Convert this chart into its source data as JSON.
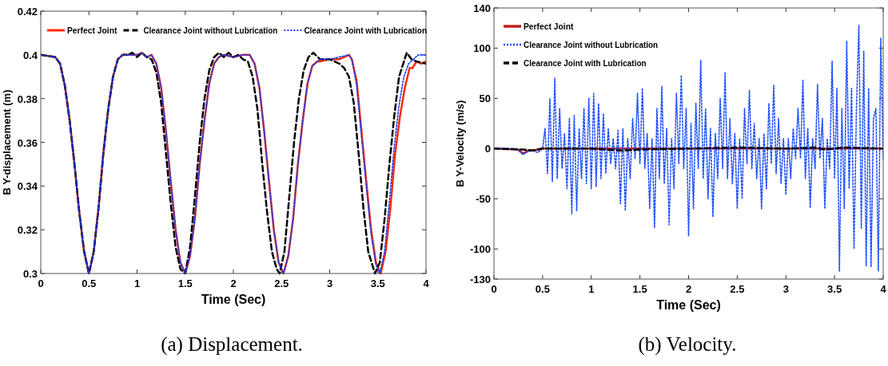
{
  "chart_data": [
    {
      "type": "line",
      "title": "(a) Displacement.",
      "xlabel": "Time (Sec)",
      "ylabel": "B Y-displacement (m)",
      "xlim": [
        0,
        4
      ],
      "xticks": [
        0,
        0.5,
        1,
        1.5,
        2,
        2.5,
        3,
        3.5,
        4
      ],
      "ylim": [
        0.3,
        0.42
      ],
      "yticks": [
        0.3,
        0.32,
        0.34,
        0.36,
        0.38,
        0.4,
        0.42
      ],
      "grid": false,
      "legend": "top",
      "marker": "none",
      "series": [
        {
          "name": "Perfect Joint",
          "color": "#ff2a00",
          "line_style": "solid",
          "x": [
            0,
            0.15,
            0.2,
            0.25,
            0.3,
            0.35,
            0.4,
            0.45,
            0.5,
            0.55,
            0.6,
            0.65,
            0.7,
            0.75,
            0.8,
            0.85,
            0.9,
            1.0,
            1.05,
            1.1,
            1.15,
            1.2,
            1.25,
            1.3,
            1.35,
            1.4,
            1.45,
            1.5,
            1.55,
            1.6,
            1.65,
            1.7,
            1.75,
            1.8,
            1.85,
            1.9,
            2.0,
            2.1,
            2.17,
            2.22,
            2.27,
            2.32,
            2.37,
            2.42,
            2.47,
            2.52,
            2.57,
            2.62,
            2.67,
            2.72,
            2.77,
            2.82,
            2.87,
            2.9,
            3.0,
            3.1,
            3.2,
            3.23,
            3.28,
            3.33,
            3.38,
            3.43,
            3.48,
            3.53,
            3.58,
            3.63,
            3.68,
            3.73,
            3.78,
            3.83,
            3.86,
            3.9,
            3.95,
            4.0
          ],
          "values": [
            0.4,
            0.399,
            0.396,
            0.386,
            0.37,
            0.35,
            0.328,
            0.31,
            0.3,
            0.31,
            0.33,
            0.355,
            0.375,
            0.39,
            0.398,
            0.4,
            0.4,
            0.4,
            0.401,
            0.399,
            0.4,
            0.396,
            0.385,
            0.365,
            0.342,
            0.32,
            0.305,
            0.3,
            0.308,
            0.325,
            0.35,
            0.37,
            0.387,
            0.396,
            0.399,
            0.4,
            0.399,
            0.4,
            0.4,
            0.396,
            0.385,
            0.365,
            0.342,
            0.32,
            0.305,
            0.3,
            0.308,
            0.325,
            0.35,
            0.37,
            0.387,
            0.395,
            0.397,
            0.397,
            0.398,
            0.398,
            0.4,
            0.398,
            0.388,
            0.365,
            0.342,
            0.32,
            0.305,
            0.3,
            0.31,
            0.33,
            0.355,
            0.372,
            0.385,
            0.394,
            0.394,
            0.397,
            0.396,
            0.397
          ]
        },
        {
          "name": "Clearance Joint without Lubrication",
          "color": "#000000",
          "line_style": "dashed",
          "x": [
            0,
            0.15,
            0.2,
            0.25,
            0.3,
            0.35,
            0.4,
            0.45,
            0.5,
            0.55,
            0.6,
            0.65,
            0.7,
            0.75,
            0.8,
            0.85,
            0.9,
            0.95,
            1.0,
            1.05,
            1.1,
            1.15,
            1.2,
            1.25,
            1.3,
            1.35,
            1.4,
            1.45,
            1.5,
            1.55,
            1.6,
            1.65,
            1.7,
            1.75,
            1.8,
            1.85,
            1.9,
            1.95,
            2.0,
            2.05,
            2.1,
            2.15,
            2.2,
            2.25,
            2.3,
            2.35,
            2.4,
            2.45,
            2.48,
            2.53,
            2.58,
            2.63,
            2.68,
            2.73,
            2.78,
            2.83,
            2.9,
            3.0,
            3.1,
            3.15,
            3.2,
            3.25,
            3.3,
            3.35,
            3.4,
            3.47,
            3.52,
            3.57,
            3.62,
            3.67,
            3.72,
            3.8,
            3.85,
            3.9,
            4.0
          ],
          "values": [
            0.4,
            0.399,
            0.396,
            0.386,
            0.37,
            0.35,
            0.328,
            0.31,
            0.3,
            0.31,
            0.33,
            0.355,
            0.375,
            0.39,
            0.398,
            0.4,
            0.4,
            0.401,
            0.399,
            0.401,
            0.399,
            0.398,
            0.392,
            0.378,
            0.355,
            0.332,
            0.312,
            0.302,
            0.3,
            0.312,
            0.335,
            0.36,
            0.38,
            0.393,
            0.399,
            0.401,
            0.399,
            0.401,
            0.399,
            0.4,
            0.398,
            0.397,
            0.39,
            0.375,
            0.35,
            0.328,
            0.31,
            0.302,
            0.3,
            0.31,
            0.335,
            0.36,
            0.38,
            0.393,
            0.399,
            0.401,
            0.398,
            0.398,
            0.396,
            0.394,
            0.39,
            0.378,
            0.355,
            0.33,
            0.31,
            0.3,
            0.305,
            0.325,
            0.35,
            0.372,
            0.39,
            0.401,
            0.398,
            0.397,
            0.396
          ]
        },
        {
          "name": "Clearance Joint with Lubrication",
          "color": "#1a3cff",
          "line_style": "dotted",
          "x": [
            0,
            0.15,
            0.2,
            0.25,
            0.3,
            0.35,
            0.4,
            0.45,
            0.5,
            0.55,
            0.6,
            0.65,
            0.7,
            0.75,
            0.8,
            0.85,
            0.9,
            1.0,
            1.05,
            1.1,
            1.15,
            1.2,
            1.25,
            1.3,
            1.35,
            1.4,
            1.45,
            1.5,
            1.55,
            1.6,
            1.65,
            1.7,
            1.75,
            1.8,
            1.85,
            1.9,
            2.0,
            2.1,
            2.17,
            2.22,
            2.27,
            2.32,
            2.37,
            2.42,
            2.47,
            2.52,
            2.57,
            2.62,
            2.67,
            2.72,
            2.77,
            2.82,
            2.87,
            2.9,
            3.0,
            3.1,
            3.2,
            3.23,
            3.28,
            3.33,
            3.38,
            3.43,
            3.48,
            3.52,
            3.57,
            3.62,
            3.67,
            3.72,
            3.77,
            3.82,
            3.87,
            3.92,
            4.0
          ],
          "values": [
            0.4,
            0.399,
            0.396,
            0.386,
            0.37,
            0.35,
            0.328,
            0.31,
            0.3,
            0.31,
            0.33,
            0.355,
            0.375,
            0.39,
            0.398,
            0.4,
            0.4,
            0.4,
            0.401,
            0.399,
            0.4,
            0.396,
            0.385,
            0.365,
            0.342,
            0.32,
            0.305,
            0.3,
            0.308,
            0.325,
            0.35,
            0.37,
            0.387,
            0.396,
            0.399,
            0.4,
            0.399,
            0.4,
            0.4,
            0.396,
            0.385,
            0.365,
            0.342,
            0.32,
            0.305,
            0.3,
            0.308,
            0.325,
            0.35,
            0.37,
            0.387,
            0.395,
            0.397,
            0.398,
            0.398,
            0.399,
            0.4,
            0.398,
            0.386,
            0.363,
            0.34,
            0.318,
            0.304,
            0.3,
            0.31,
            0.333,
            0.358,
            0.377,
            0.39,
            0.396,
            0.398,
            0.4,
            0.4
          ]
        }
      ]
    },
    {
      "type": "line",
      "title": "(b) Velocity.",
      "xlabel": "Time (Sec)",
      "ylabel": "B Y-Velocity (m/s)",
      "xlim": [
        0,
        4
      ],
      "xticks": [
        0,
        0.5,
        1,
        1.5,
        2,
        2.5,
        3,
        3.5,
        4
      ],
      "ylim": [
        -130,
        140
      ],
      "yticks": [
        -130,
        -100,
        -50,
        0,
        50,
        100,
        140
      ],
      "grid": false,
      "legend": "top left",
      "marker": "none",
      "series": [
        {
          "name": "Perfect Joint",
          "color": "#c0201c",
          "line_style": "solid",
          "x": [
            0,
            0.25,
            0.3,
            0.35,
            0.4,
            0.5,
            1.0,
            2.0,
            3.0,
            4.0
          ],
          "values": [
            0,
            -1,
            -5,
            -2,
            -2,
            0,
            0,
            0,
            0,
            0
          ]
        },
        {
          "name": "Clearance Joint without Lubrication",
          "color": "#1f4fff",
          "line_style": "dotted",
          "x": [
            0,
            0.2,
            0.25,
            0.3,
            0.35,
            0.4,
            0.45,
            0.5,
            0.525,
            0.55,
            0.575,
            0.6,
            0.625,
            0.65,
            0.675,
            0.7,
            0.725,
            0.75,
            0.775,
            0.8,
            0.825,
            0.85,
            0.875,
            0.9,
            0.925,
            0.95,
            0.975,
            1.0,
            1.025,
            1.05,
            1.075,
            1.1,
            1.125,
            1.15,
            1.175,
            1.2,
            1.225,
            1.25,
            1.275,
            1.3,
            1.325,
            1.35,
            1.375,
            1.4,
            1.425,
            1.45,
            1.475,
            1.5,
            1.525,
            1.55,
            1.575,
            1.6,
            1.625,
            1.65,
            1.675,
            1.7,
            1.725,
            1.75,
            1.775,
            1.8,
            1.825,
            1.85,
            1.875,
            1.9,
            1.925,
            1.95,
            1.975,
            2.0,
            2.025,
            2.05,
            2.075,
            2.1,
            2.125,
            2.15,
            2.175,
            2.2,
            2.225,
            2.25,
            2.275,
            2.3,
            2.325,
            2.35,
            2.375,
            2.4,
            2.425,
            2.45,
            2.475,
            2.5,
            2.525,
            2.55,
            2.575,
            2.6,
            2.625,
            2.65,
            2.675,
            2.7,
            2.725,
            2.75,
            2.775,
            2.8,
            2.825,
            2.85,
            2.875,
            2.9,
            2.925,
            2.95,
            2.975,
            3.0,
            3.025,
            3.05,
            3.075,
            3.1,
            3.125,
            3.15,
            3.175,
            3.2,
            3.225,
            3.25,
            3.275,
            3.3,
            3.325,
            3.35,
            3.375,
            3.4,
            3.425,
            3.45,
            3.475,
            3.5,
            3.525,
            3.55,
            3.575,
            3.6,
            3.625,
            3.65,
            3.675,
            3.7,
            3.725,
            3.75,
            3.775,
            3.8,
            3.825,
            3.85,
            3.875,
            3.9,
            3.925,
            3.95,
            3.975,
            4.0
          ],
          "values": [
            0,
            0,
            -2,
            -6,
            -3,
            -2,
            -4,
            0,
            20,
            -25,
            50,
            -33,
            70,
            -30,
            40,
            -20,
            15,
            -40,
            30,
            -65,
            33,
            -62,
            20,
            -30,
            40,
            -35,
            50,
            -40,
            55,
            -38,
            45,
            -30,
            35,
            -25,
            20,
            -15,
            10,
            -20,
            18,
            -55,
            20,
            -62,
            10,
            -30,
            30,
            -10,
            55,
            -15,
            60,
            -20,
            15,
            -60,
            10,
            -79,
            40,
            -30,
            62,
            -35,
            20,
            -76,
            10,
            -40,
            55,
            -15,
            73,
            -20,
            40,
            -87,
            25,
            -60,
            45,
            -20,
            88,
            -30,
            40,
            -50,
            20,
            -68,
            15,
            -30,
            50,
            -20,
            76,
            -30,
            30,
            -35,
            15,
            -60,
            10,
            -50,
            40,
            -15,
            58,
            -20,
            25,
            -30,
            10,
            -60,
            15,
            -40,
            45,
            -15,
            63,
            -25,
            30,
            -35,
            10,
            -46,
            10,
            -30,
            20,
            -10,
            40,
            -10,
            68,
            -30,
            20,
            -59,
            10,
            -20,
            64,
            -10,
            30,
            -60,
            10,
            -20,
            87,
            -30,
            60,
            -122,
            40,
            -60,
            107,
            -40,
            60,
            -100,
            40,
            123,
            -80,
            97,
            -117,
            60,
            -118,
            30,
            40,
            -122,
            110,
            -10
          ]
        },
        {
          "name": "Clearance Joint with Lubrication",
          "color": "#000000",
          "line_style": "dashed",
          "x": [
            0,
            0.3,
            0.4,
            0.5,
            1.0,
            1.3,
            1.5,
            2.0,
            2.5,
            3.0,
            3.3,
            3.4,
            3.5,
            3.6,
            4.0
          ],
          "values": [
            0,
            -1,
            -2,
            0,
            0,
            -2,
            -1,
            0,
            1,
            0,
            1,
            -1,
            0,
            1,
            0
          ]
        }
      ]
    }
  ]
}
